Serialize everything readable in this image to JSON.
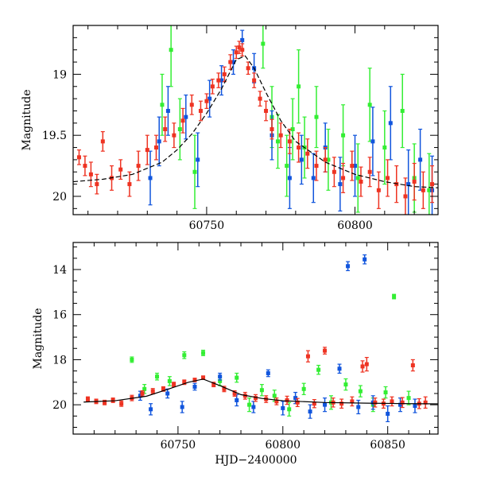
{
  "colors": {
    "green": "#33ee33",
    "blue": "#1155dd",
    "red": "#ee3322",
    "fit": "#000000"
  },
  "chart_data": [
    {
      "type": "scatter",
      "title": "",
      "xlabel": "",
      "ylabel": "Magnitude",
      "xlim": [
        60705,
        60828
      ],
      "ylim": [
        20.15,
        18.6
      ],
      "y_inverted": true,
      "x_ticks": [
        60750,
        60800
      ],
      "x_tick_labels": [
        "60750",
        "60800"
      ],
      "y_ticks": [
        19,
        19.5,
        20
      ],
      "y_tick_labels": [
        "19",
        "19.5",
        "20"
      ],
      "grid": false,
      "legend": "none",
      "fit_curve": {
        "type": "line",
        "style": "dashed",
        "color": "black",
        "x": [
          60705,
          60715,
          60725,
          60735,
          60740,
          60745,
          60750,
          60755,
          60760,
          60763,
          60766,
          60770,
          60775,
          60780,
          60790,
          60800,
          60810,
          60820,
          60828
        ],
        "y": [
          19.88,
          19.86,
          19.82,
          19.72,
          19.62,
          19.49,
          19.32,
          19.12,
          18.88,
          18.85,
          18.95,
          19.15,
          19.38,
          19.55,
          19.72,
          19.82,
          19.88,
          19.92,
          19.93
        ]
      },
      "series": [
        {
          "color": "red",
          "x": [
            60707,
            60709,
            60711,
            60713,
            60715,
            60718,
            60721,
            60724,
            60727,
            60730,
            60733,
            60736,
            60739,
            60742,
            60745,
            60748,
            60750,
            60752,
            60754,
            60756,
            60758,
            60760,
            60761,
            60762,
            60764,
            60766,
            60768,
            60770,
            60772,
            60775,
            60778,
            60781,
            60784,
            60787,
            60790,
            60793,
            60796,
            60799,
            60802,
            60805,
            60808,
            60811,
            60814,
            60817,
            60820,
            60823,
            60826
          ],
          "y": [
            19.68,
            19.75,
            19.82,
            19.9,
            19.55,
            19.85,
            19.78,
            19.9,
            19.75,
            19.62,
            19.6,
            19.45,
            19.5,
            19.38,
            19.25,
            19.3,
            19.22,
            19.1,
            19.05,
            19.0,
            18.9,
            18.82,
            18.78,
            18.8,
            18.95,
            19.05,
            19.2,
            19.3,
            19.45,
            19.5,
            19.55,
            19.6,
            19.65,
            19.75,
            19.7,
            19.8,
            19.85,
            19.75,
            19.88,
            19.8,
            19.95,
            19.85,
            19.9,
            20.0,
            19.88,
            19.95,
            19.9
          ],
          "err": [
            0.06,
            0.08,
            0.1,
            0.08,
            0.08,
            0.1,
            0.08,
            0.1,
            0.12,
            0.12,
            0.1,
            0.1,
            0.1,
            0.1,
            0.08,
            0.08,
            0.06,
            0.06,
            0.06,
            0.06,
            0.06,
            0.05,
            0.05,
            0.05,
            0.05,
            0.06,
            0.06,
            0.08,
            0.08,
            0.1,
            0.1,
            0.12,
            0.12,
            0.12,
            0.1,
            0.12,
            0.12,
            0.12,
            0.12,
            0.12,
            0.15,
            0.15,
            0.15,
            0.15,
            0.15,
            0.15,
            0.15
          ]
        },
        {
          "color": "blue",
          "x": [
            60731,
            60734,
            60737,
            60743,
            60747,
            60751,
            60755,
            60759,
            60762,
            60766,
            60772,
            60778,
            60782,
            60786,
            60790,
            60795,
            60800,
            60806,
            60812,
            60818,
            60822,
            60826
          ],
          "y": [
            19.85,
            19.55,
            19.3,
            19.35,
            19.7,
            19.2,
            19.05,
            18.9,
            18.72,
            18.95,
            19.5,
            19.85,
            19.7,
            19.85,
            19.6,
            19.9,
            19.75,
            19.55,
            19.4,
            19.9,
            19.7,
            19.95
          ],
          "err": [
            0.22,
            0.2,
            0.2,
            0.18,
            0.22,
            0.15,
            0.12,
            0.1,
            0.08,
            0.12,
            0.2,
            0.25,
            0.2,
            0.2,
            0.2,
            0.22,
            0.25,
            0.28,
            0.3,
            0.28,
            0.25,
            0.28
          ]
        },
        {
          "color": "green",
          "x": [
            60735,
            60738,
            60741,
            60746,
            60769,
            60772,
            60774,
            60777,
            60779,
            60781,
            60783,
            60787,
            60791,
            60796,
            60801,
            60805,
            60810,
            60816,
            60820,
            60825
          ],
          "y": [
            19.25,
            18.8,
            19.45,
            19.8,
            18.75,
            19.35,
            19.55,
            19.75,
            19.45,
            19.1,
            19.6,
            19.35,
            19.7,
            19.5,
            19.85,
            19.25,
            19.6,
            19.3,
            19.85,
            19.95
          ],
          "err": [
            0.25,
            0.3,
            0.25,
            0.3,
            0.2,
            0.25,
            0.22,
            0.25,
            0.25,
            0.3,
            0.25,
            0.25,
            0.25,
            0.25,
            0.28,
            0.3,
            0.3,
            0.3,
            0.28,
            0.3
          ]
        }
      ]
    },
    {
      "type": "scatter",
      "title": "",
      "xlabel": "HJD−2400000",
      "ylabel": "Magnitude",
      "xlim": [
        60700,
        60874
      ],
      "ylim": [
        21.3,
        12.8
      ],
      "y_inverted": true,
      "x_ticks": [
        60750,
        60800,
        60850
      ],
      "x_tick_labels": [
        "60750",
        "60800",
        "60850"
      ],
      "y_ticks": [
        14,
        16,
        18,
        20
      ],
      "y_tick_labels": [
        "14",
        "16",
        "18",
        "20"
      ],
      "grid": false,
      "legend": "none",
      "fit_curve": {
        "type": "line",
        "style": "solid",
        "color": "black",
        "x": [
          60705,
          60720,
          60735,
          60745,
          60755,
          60762,
          60770,
          60780,
          60790,
          60800,
          60820,
          60840,
          60860,
          60874
        ],
        "y": [
          19.88,
          19.82,
          19.62,
          19.32,
          19.0,
          18.86,
          19.15,
          19.55,
          19.72,
          19.82,
          19.9,
          19.93,
          19.95,
          19.96
        ]
      },
      "series": [
        {
          "color": "red",
          "x": [
            60707,
            60711,
            60715,
            60719,
            60723,
            60728,
            60733,
            60738,
            60743,
            60748,
            60753,
            60758,
            60762,
            60767,
            60772,
            60777,
            60782,
            60787,
            60792,
            60797,
            60802,
            60807,
            60812,
            60815,
            60820,
            60824,
            60828,
            60833,
            60838,
            60840,
            60844,
            60848,
            60852,
            60857,
            60862,
            60865,
            60868
          ],
          "y": [
            19.75,
            19.85,
            19.9,
            19.8,
            19.95,
            19.7,
            19.5,
            19.4,
            19.3,
            19.1,
            19.0,
            18.9,
            18.8,
            19.1,
            19.3,
            19.5,
            19.6,
            19.7,
            19.75,
            19.85,
            19.8,
            19.9,
            17.85,
            19.95,
            17.6,
            19.9,
            19.95,
            19.85,
            18.3,
            18.2,
            19.9,
            19.95,
            19.85,
            19.9,
            18.25,
            19.95,
            19.9
          ],
          "err": [
            0.1,
            0.1,
            0.1,
            0.1,
            0.12,
            0.12,
            0.12,
            0.12,
            0.1,
            0.1,
            0.1,
            0.08,
            0.08,
            0.1,
            0.12,
            0.12,
            0.15,
            0.15,
            0.15,
            0.15,
            0.18,
            0.18,
            0.25,
            0.18,
            0.15,
            0.2,
            0.2,
            0.2,
            0.25,
            0.3,
            0.2,
            0.2,
            0.2,
            0.22,
            0.25,
            0.22,
            0.25
          ]
        },
        {
          "color": "blue",
          "x": [
            60732,
            60737,
            60745,
            60752,
            60758,
            60770,
            60778,
            60786,
            60793,
            60800,
            60806,
            60813,
            60820,
            60827,
            60831,
            60836,
            60839,
            60843,
            60850,
            60856,
            60863
          ],
          "y": [
            19.6,
            20.2,
            19.5,
            20.1,
            19.2,
            18.75,
            19.8,
            20.1,
            18.6,
            20.15,
            19.7,
            20.3,
            20.0,
            18.4,
            13.85,
            20.1,
            13.55,
            19.9,
            20.4,
            20.0,
            20.05
          ],
          "err": [
            0.2,
            0.25,
            0.2,
            0.25,
            0.15,
            0.15,
            0.25,
            0.25,
            0.15,
            0.3,
            0.25,
            0.3,
            0.3,
            0.2,
            0.2,
            0.3,
            0.2,
            0.3,
            0.35,
            0.3,
            0.3
          ]
        },
        {
          "color": "green",
          "x": [
            60728,
            60734,
            60740,
            60746,
            60753,
            60762,
            60770,
            60778,
            60784,
            60790,
            60796,
            60803,
            60810,
            60817,
            60823,
            60830,
            60837,
            60843,
            60849,
            60853,
            60860
          ],
          "y": [
            18.0,
            19.3,
            18.75,
            18.95,
            17.8,
            17.7,
            18.95,
            18.8,
            20.0,
            19.35,
            19.6,
            20.2,
            19.3,
            18.45,
            19.9,
            19.1,
            19.4,
            20.0,
            19.45,
            15.2,
            19.7
          ],
          "err": [
            0.12,
            0.2,
            0.15,
            0.2,
            0.15,
            0.12,
            0.2,
            0.2,
            0.3,
            0.25,
            0.25,
            0.3,
            0.25,
            0.2,
            0.3,
            0.25,
            0.25,
            0.3,
            0.25,
            0.1,
            0.3
          ]
        }
      ]
    }
  ]
}
